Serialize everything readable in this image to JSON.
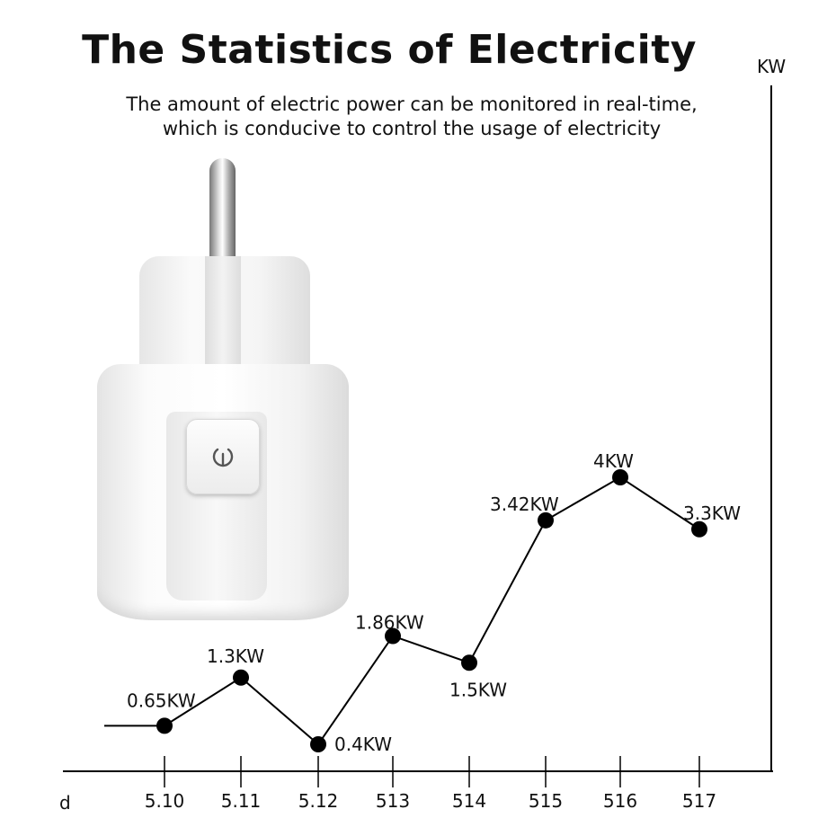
{
  "header": {
    "title": "The Statistics of Electricity",
    "subtitle_line1": "The amount of electric power can be monitored in real-time,",
    "subtitle_line2": "which is conducive to control the usage of electricity"
  },
  "product": {
    "icon": "power-button-icon",
    "color": "#f5f5f5"
  },
  "chart_data": {
    "type": "line",
    "title": "",
    "xlabel": "d",
    "ylabel": "KW",
    "categories": [
      "5.10",
      "5.11",
      "5.12",
      "513",
      "514",
      "515",
      "516",
      "517"
    ],
    "values": [
      0.65,
      1.3,
      0.4,
      1.86,
      1.5,
      3.42,
      4,
      3.3
    ],
    "data_labels": [
      "0.65KW",
      "1.3KW",
      "0.4KW",
      "1.86KW",
      "1.5KW",
      "3.42KW",
      "4KW",
      "3.3KW"
    ],
    "grid": false,
    "line_color": "#000000"
  }
}
